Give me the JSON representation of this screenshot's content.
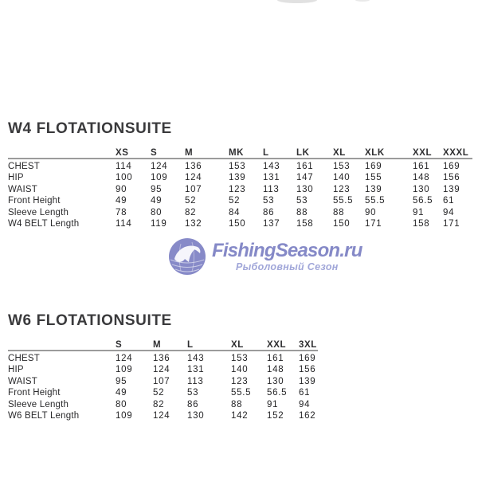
{
  "page": {
    "background": "#ffffff"
  },
  "sections": [
    {
      "title": "W4 FLOTATIONSUITE",
      "columns": [
        "XS",
        "S",
        "M",
        "MK",
        "L",
        "LK",
        "XL",
        "XLK",
        "XXL",
        "XXXL"
      ],
      "rows": [
        {
          "label": "CHEST",
          "values": [
            "114",
            "124",
            "136",
            "153",
            "143",
            "161",
            "153",
            "169",
            "161",
            "169"
          ]
        },
        {
          "label": "HIP",
          "values": [
            "100",
            "109",
            "124",
            "139",
            "131",
            "147",
            "140",
            "155",
            "148",
            "156"
          ]
        },
        {
          "label": "WAIST",
          "values": [
            "90",
            "95",
            "107",
            "123",
            "113",
            "130",
            "123",
            "139",
            "130",
            "139"
          ]
        },
        {
          "label": "Front Height",
          "values": [
            "49",
            "49",
            "52",
            "52",
            "53",
            "53",
            "55.5",
            "55.5",
            "56.5",
            "61"
          ]
        },
        {
          "label": "Sleeve Length",
          "values": [
            "78",
            "80",
            "82",
            "84",
            "86",
            "88",
            "88",
            "90",
            "91",
            "94"
          ]
        },
        {
          "label": "W4 BELT Length",
          "values": [
            "114",
            "119",
            "132",
            "150",
            "137",
            "158",
            "150",
            "171",
            "158",
            "171"
          ]
        }
      ]
    },
    {
      "title": "W6 FLOTATIONSUITE",
      "columns": [
        "S",
        "M",
        "L",
        "XL",
        "XXL",
        "3XL"
      ],
      "rows": [
        {
          "label": "CHEST",
          "values": [
            "124",
            "136",
            "143",
            "153",
            "161",
            "169"
          ]
        },
        {
          "label": "HIP",
          "values": [
            "109",
            "124",
            "131",
            "140",
            "148",
            "156"
          ]
        },
        {
          "label": "WAIST",
          "values": [
            "95",
            "107",
            "113",
            "123",
            "130",
            "139"
          ]
        },
        {
          "label": "Front Height",
          "values": [
            "49",
            "52",
            "53",
            "55.5",
            "56.5",
            "61"
          ]
        },
        {
          "label": "Sleeve Length",
          "values": [
            "80",
            "82",
            "86",
            "88",
            "91",
            "94"
          ]
        },
        {
          "label": "W6 BELT Length",
          "values": [
            "109",
            "124",
            "130",
            "142",
            "152",
            "162"
          ]
        }
      ]
    }
  ],
  "watermark": {
    "brand": "FishingSeason.ru",
    "tagline": "Рыболовный Сезон",
    "icon": "fish-globe-icon",
    "brand_color": "#7b80c3",
    "tagline_color": "#9aa0d6"
  },
  "colors": {
    "title_text": "#3a3a3c",
    "table_text": "#242426",
    "header_rule": "#9b9b9b"
  }
}
